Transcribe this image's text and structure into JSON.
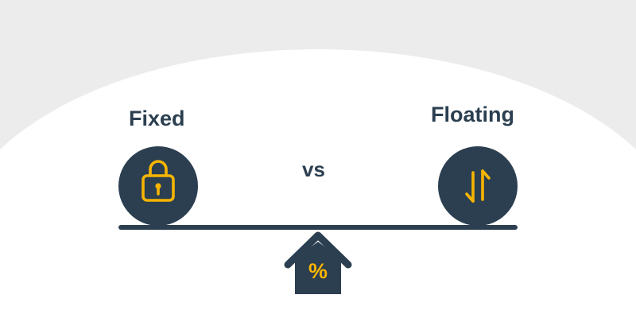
{
  "left_option": {
    "label": "Fixed",
    "icon": "lock-icon"
  },
  "right_option": {
    "label": "Floating",
    "icon": "up-down-arrows-icon"
  },
  "comparison": {
    "label": "vs"
  },
  "pivot": {
    "symbol": "%",
    "icon": "house-icon"
  },
  "colors": {
    "background_top": "#ececec",
    "foreground": "#ffffff",
    "dark": "#2b3f50",
    "accent": "#f7b500"
  }
}
